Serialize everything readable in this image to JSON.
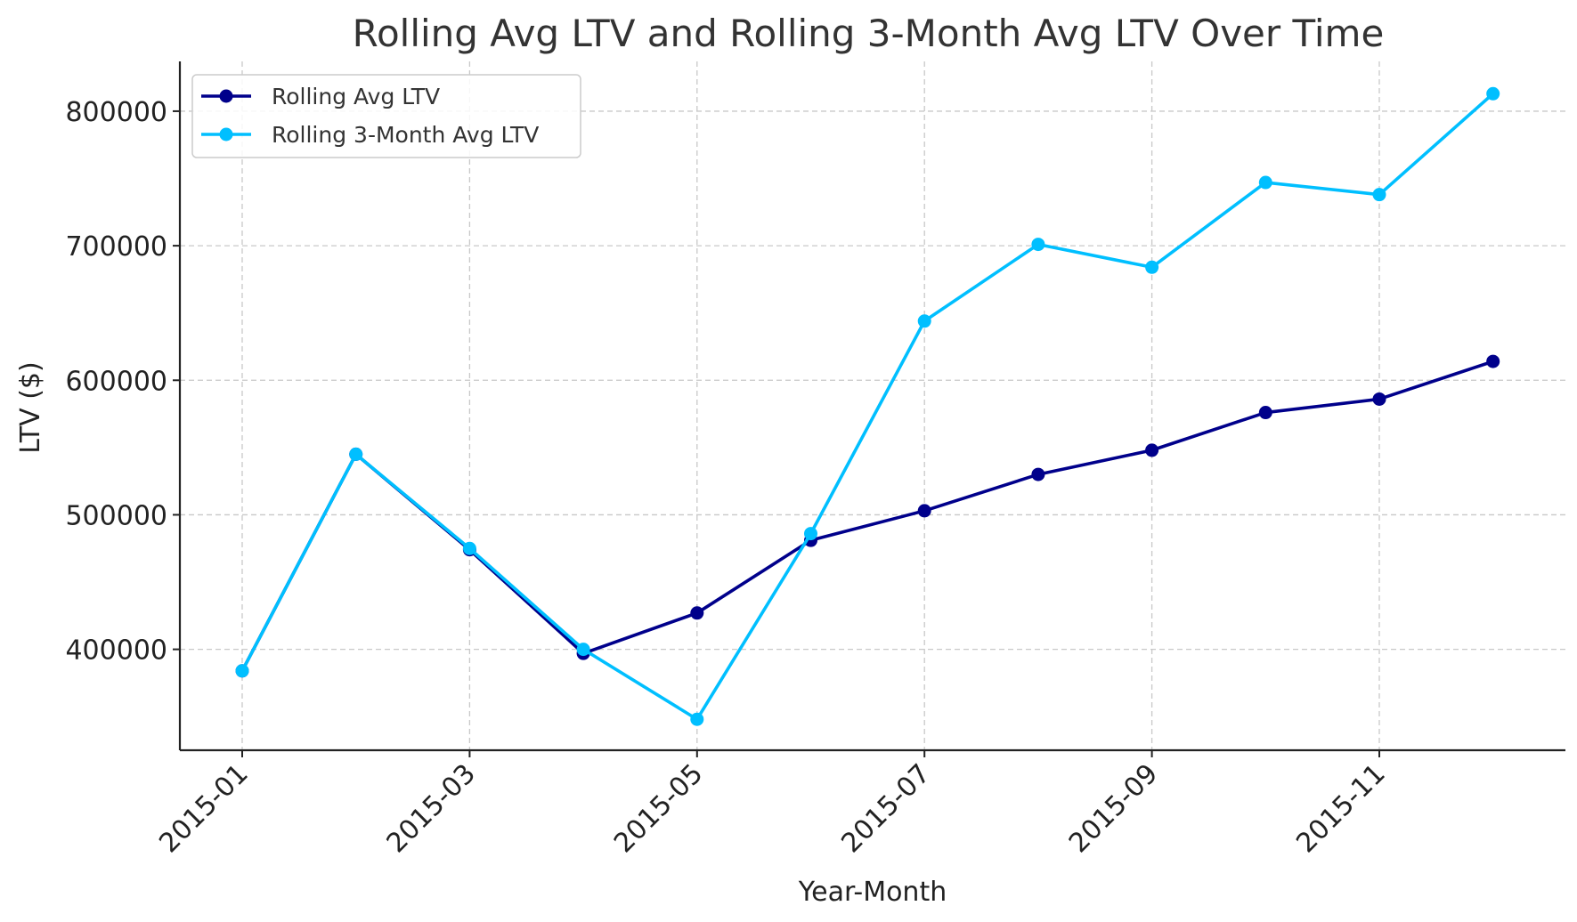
{
  "chart_data": {
    "type": "line",
    "title": "Rolling Avg LTV and Rolling 3-Month Avg LTV Over Time",
    "xlabel": "Year-Month",
    "ylabel": "LTV ($)",
    "x": [
      "2015-01",
      "2015-02",
      "2015-03",
      "2015-04",
      "2015-05",
      "2015-06",
      "2015-07",
      "2015-08",
      "2015-09",
      "2015-10",
      "2015-11",
      "2015-12"
    ],
    "x_tick_labels": [
      "2015-01",
      "2015-03",
      "2015-05",
      "2015-07",
      "2015-09",
      "2015-11"
    ],
    "y_ticks": [
      400000,
      500000,
      600000,
      700000,
      800000
    ],
    "ylim": [
      325000,
      837000
    ],
    "grid": true,
    "legend_position": "top-left",
    "series": [
      {
        "name": "Rolling Avg LTV",
        "color": "#00008b",
        "values": [
          384000,
          545000,
          474000,
          397000,
          427000,
          481000,
          503000,
          530000,
          548000,
          576000,
          586000,
          614000
        ]
      },
      {
        "name": "Rolling 3-Month Avg LTV",
        "color": "#00bfff",
        "values": [
          384000,
          545000,
          475000,
          400000,
          348000,
          486000,
          644000,
          701000,
          684000,
          747000,
          738000,
          813000
        ]
      }
    ]
  }
}
